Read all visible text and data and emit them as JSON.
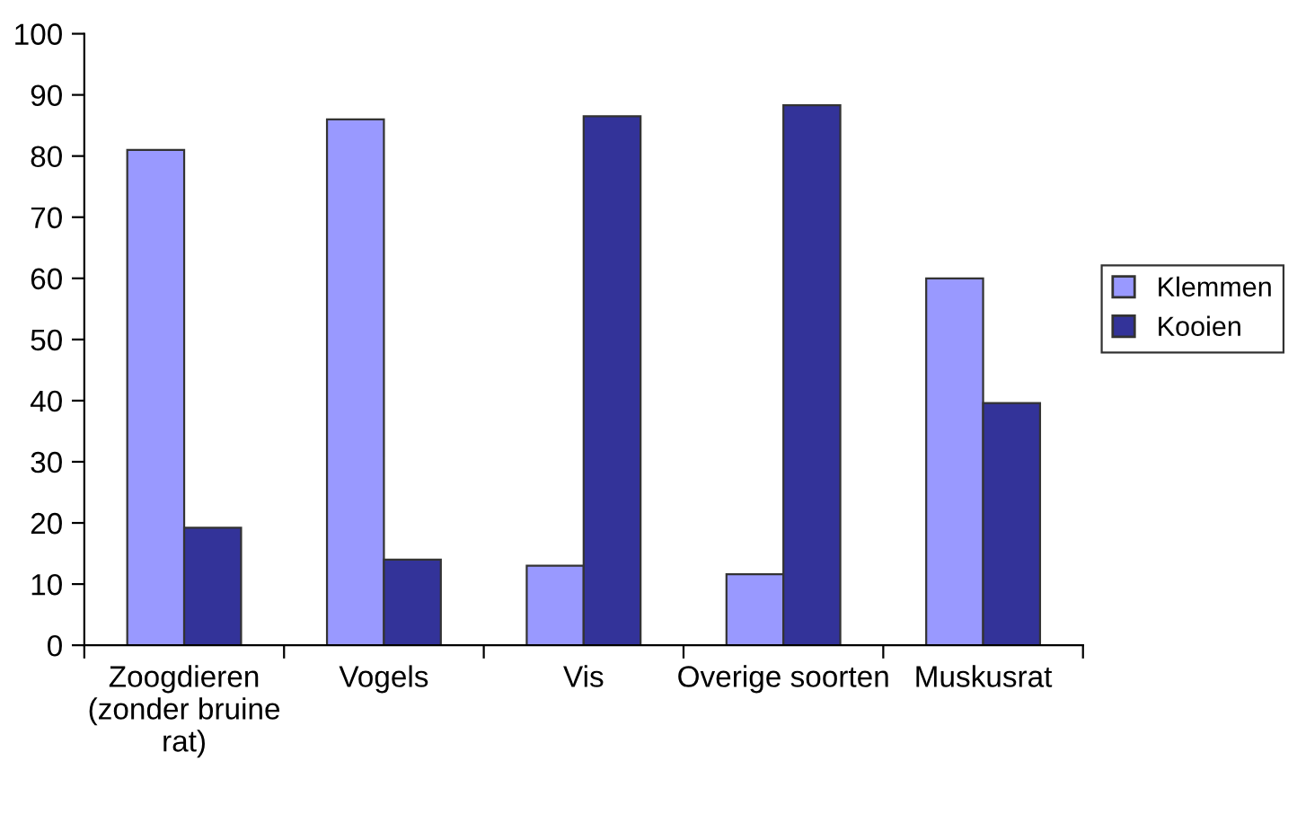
{
  "chart_data": {
    "type": "bar",
    "categories": [
      "Zoogdieren\n(zonder bruine\nrat)",
      "Vogels",
      "Vis",
      "Overige soorten",
      "Muskusrat"
    ],
    "series": [
      {
        "name": "Klemmen",
        "color": "#9999ff",
        "values": [
          81,
          86,
          13,
          11.6,
          60
        ]
      },
      {
        "name": "Kooien",
        "color": "#333399",
        "values": [
          19.2,
          14,
          86.5,
          88.3,
          39.6
        ]
      }
    ],
    "ylim": [
      0,
      100
    ],
    "yticks": [
      0,
      10,
      20,
      30,
      40,
      50,
      60,
      70,
      80,
      90,
      100
    ],
    "grid": false,
    "legend": "right"
  }
}
